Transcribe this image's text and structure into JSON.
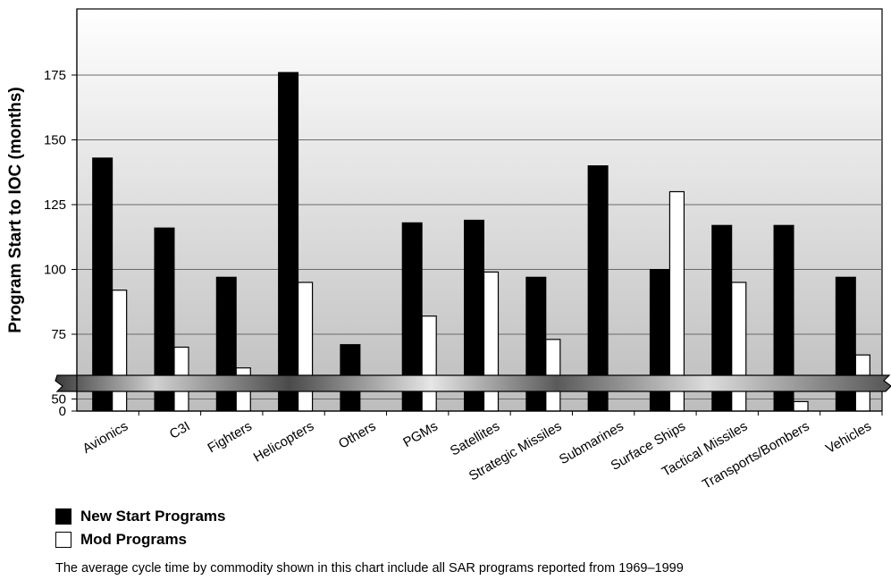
{
  "chart_data": {
    "type": "bar",
    "ylabel": "Program Start to IOC (months)",
    "y_ticks": [
      0,
      50,
      75,
      100,
      125,
      150,
      175
    ],
    "y_axis_break": [
      0,
      45
    ],
    "grid": true,
    "legend_position": "bottom-left",
    "categories": [
      "Avionics",
      "C3I",
      "Fighters",
      "Helicopters",
      "Others",
      "PGMs",
      "Satellites",
      "Strategic Missiles",
      "Submarines",
      "Surface Ships",
      "Tactical Missiles",
      "Transports/Bombers",
      "Vehicles"
    ],
    "series": [
      {
        "name": "New Start Programs",
        "color": "#000000",
        "values": [
          143,
          116,
          97,
          176,
          71,
          118,
          119,
          97,
          140,
          100,
          117,
          117,
          97
        ]
      },
      {
        "name": "Mod Programs",
        "color": "#ffffff",
        "values": [
          92,
          70,
          62,
          95,
          null,
          82,
          99,
          73,
          null,
          130,
          95,
          49,
          67
        ]
      }
    ]
  },
  "legend": {
    "new_start_label": "New Start Programs",
    "mod_label": "Mod Programs"
  },
  "footnote": "The average cycle time by commodity shown in this chart include all SAR programs reported from 1969–1999"
}
